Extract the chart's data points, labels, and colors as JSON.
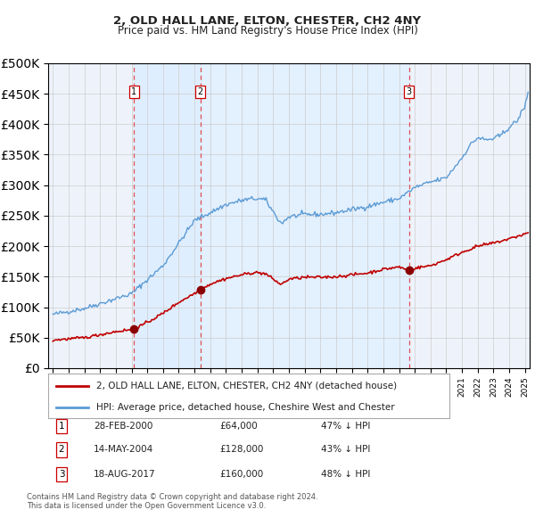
{
  "title": "2, OLD HALL LANE, ELTON, CHESTER, CH2 4NY",
  "subtitle": "Price paid vs. HM Land Registry's House Price Index (HPI)",
  "hpi_legend": "HPI: Average price, detached house, Cheshire West and Chester",
  "price_legend": "2, OLD HALL LANE, ELTON, CHESTER, CH2 4NY (detached house)",
  "transactions": [
    {
      "num": 1,
      "date_str": "28-FEB-2000",
      "date_x": 2000.16,
      "price": 64000,
      "pct": "47% ↓ HPI"
    },
    {
      "num": 2,
      "date_str": "14-MAY-2004",
      "date_x": 2004.37,
      "price": 128000,
      "pct": "43% ↓ HPI"
    },
    {
      "num": 3,
      "date_str": "18-AUG-2017",
      "date_x": 2017.63,
      "price": 160000,
      "pct": "48% ↓ HPI"
    }
  ],
  "footer1": "Contains HM Land Registry data © Crown copyright and database right 2024.",
  "footer2": "This data is licensed under the Open Government Licence v3.0.",
  "hpi_color": "#5b9bd5",
  "price_color": "#c00000",
  "vline_color": "#e05050",
  "shade_color": "#ddeeff",
  "dot_color": "#8b0000",
  "background_color": "#ffffff",
  "plot_bg": "#eef3fb",
  "ylim": [
    0,
    500000
  ],
  "xlim_start": 1994.7,
  "xlim_end": 2025.3
}
